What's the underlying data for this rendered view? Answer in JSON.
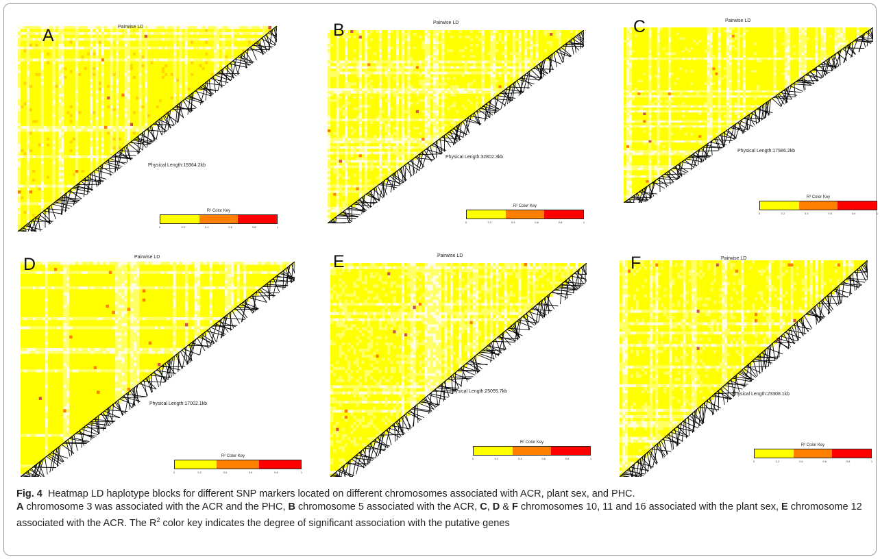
{
  "figure": {
    "caption": {
      "fig_label": "Fig. 4",
      "line1": "Heatmap LD haplotype blocks for different SNP markers located on different chromosomes associated with ACR, plant sex, and PHC.",
      "a_label": "A",
      "a_text": " chromosome 3 was associated with the ACR and the PHC, ",
      "b_label": "B",
      "b_text": " chromosome 5 associated with the ACR, ",
      "c_label": "C",
      "sep1": ", ",
      "d_label": "D",
      "amp": " & ",
      "f_label": "F",
      "cdf_text": " chromosomes 10, 11 and 16 associated with the plant sex, ",
      "e_label": "E",
      "e_text": " chromosome 12 associated with the ACR. The R",
      "sup2": "2",
      "tail": " color key indicates the degree of significant association with the putative genes"
    }
  },
  "colors": {
    "yellow": "#ffff00",
    "orange": "#ff8000",
    "red": "#ff0000",
    "line": "#000000"
  },
  "chart_data": [
    {
      "type": "heatmap",
      "panel_label": "A",
      "title": "Pairwise LD",
      "physical_length": "Physical Length:19364.2kb",
      "color_key": {
        "title": "R² Color Key",
        "ticks": [
          "0",
          "0.2",
          "0.4",
          "0.6",
          "0.8",
          "1"
        ],
        "range": [
          0,
          1
        ]
      },
      "density": 0.72
    },
    {
      "type": "heatmap",
      "panel_label": "B",
      "title": "Pairwise LD",
      "physical_length": "Physical Length:32802.3kb",
      "color_key": {
        "title": "R² Color Key",
        "ticks": [
          "0",
          "0.2",
          "0.4",
          "0.6",
          "0.8",
          "1"
        ],
        "range": [
          0,
          1
        ]
      },
      "density": 0.55
    },
    {
      "type": "heatmap",
      "panel_label": "C",
      "title": "Pairwise LD",
      "physical_length": "Physical Length:17586.2kb",
      "color_key": {
        "title": "R² Color Key",
        "ticks": [
          "0",
          "0.2",
          "0.4",
          "0.6",
          "0.8",
          "1"
        ],
        "range": [
          0,
          1
        ]
      },
      "density": 0.58
    },
    {
      "type": "heatmap",
      "panel_label": "D",
      "title": "Pairwise LD",
      "physical_length": "Physical Length:17002.1kb",
      "color_key": {
        "title": "R² Color Key",
        "ticks": [
          "0",
          "0.2",
          "0.4",
          "0.6",
          "0.8",
          "1"
        ],
        "range": [
          0,
          1
        ]
      },
      "density": 0.7
    },
    {
      "type": "heatmap",
      "panel_label": "E",
      "title": "Pairwise LD",
      "physical_length": "Physical Length:25095.7kb",
      "color_key": {
        "title": "R² Color Key",
        "ticks": [
          "0",
          "0.2",
          "0.4",
          "0.6",
          "0.8",
          "1"
        ],
        "range": [
          0,
          1
        ]
      },
      "density": 0.5
    },
    {
      "type": "heatmap",
      "panel_label": "F",
      "title": "Pairwise LD",
      "physical_length": "Physical Length:23308.1kb",
      "color_key": {
        "title": "R² Color Key",
        "ticks": [
          "0",
          "0.2",
          "0.4",
          "0.6",
          "0.8",
          "1"
        ],
        "range": [
          0,
          1
        ]
      },
      "density": 0.55
    }
  ]
}
